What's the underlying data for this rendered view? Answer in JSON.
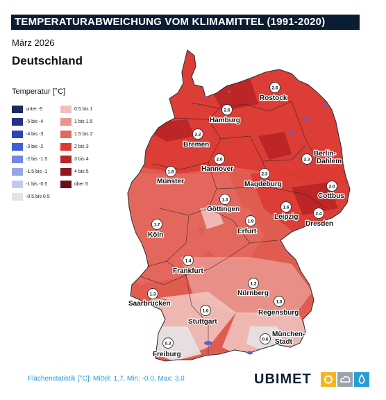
{
  "title": "TEMPERATURABWEICHUNG VOM KLIMAMITTEL (1991-2020)",
  "date": "März 2026",
  "region": "Deutschland",
  "legend": {
    "title": "Temperatur [°C]",
    "left": [
      {
        "label": "unter -5",
        "color": "#1b2a5e"
      },
      {
        "label": "-5 bis -4",
        "color": "#22338a"
      },
      {
        "label": "-4 bis -3",
        "color": "#2a45b8"
      },
      {
        "label": "-3 bis -2",
        "color": "#3f5fd8"
      },
      {
        "label": "-2 bis -1.5",
        "color": "#6f87e6"
      },
      {
        "label": "-1.5 bis -1",
        "color": "#98a7e3"
      },
      {
        "label": "-1 bis -0.5",
        "color": "#c3c9ec"
      },
      {
        "label": "-0.5 bis 0.5",
        "color": "#e5e3e3"
      }
    ],
    "right": [
      {
        "label": "0.5 bis 1",
        "color": "#efc1bd"
      },
      {
        "label": "1 bis 1.5",
        "color": "#e9958d"
      },
      {
        "label": "1.5 bis 2",
        "color": "#e4685e"
      },
      {
        "label": "2 bis 3",
        "color": "#dc3a33"
      },
      {
        "label": "3 bis 4",
        "color": "#b82326"
      },
      {
        "label": "4 bis 5",
        "color": "#91161d"
      },
      {
        "label": "über 5",
        "color": "#6b0f17"
      }
    ]
  },
  "cities": [
    {
      "name": "Rostock",
      "value": "2.6"
    },
    {
      "name": "Hamburg",
      "value": "2.5"
    },
    {
      "name": "Bremen",
      "value": "2.2"
    },
    {
      "name": "Berlin-Dahlem",
      "value": "2.3"
    },
    {
      "name": "Hannover",
      "value": "2.0"
    },
    {
      "name": "Münster",
      "value": "1.9"
    },
    {
      "name": "Magdeburg",
      "value": "2.3"
    },
    {
      "name": "Cottbus",
      "value": "2.0"
    },
    {
      "name": "Göttingen",
      "value": "1.3"
    },
    {
      "name": "Leipzig",
      "value": "1.6"
    },
    {
      "name": "Dresden",
      "value": "2.4"
    },
    {
      "name": "Köln",
      "value": "1.7"
    },
    {
      "name": "Erfurt",
      "value": "1.9"
    },
    {
      "name": "Frankfurt",
      "value": "1.4"
    },
    {
      "name": "Nürnberg",
      "value": "1.2"
    },
    {
      "name": "Saarbrücken",
      "value": "1.3"
    },
    {
      "name": "Regensburg",
      "value": "1.0"
    },
    {
      "name": "Stuttgart",
      "value": "1.0"
    },
    {
      "name": "München-Stadt",
      "value": "0.6"
    },
    {
      "name": "Freiburg",
      "value": "0.3"
    }
  ],
  "footer": {
    "stats": "Flächenstatistik [°C]: Mittel: 1.7, Min: -0.0, Max: 3.0",
    "brand": "UBIMET"
  },
  "colors": {
    "title_bg": "#0a1d33",
    "stats_text": "#2a9cd6",
    "brand_yellow": "#f3b71e",
    "brand_grey": "#9aa3ab",
    "brand_blue": "#2a9cd6"
  }
}
